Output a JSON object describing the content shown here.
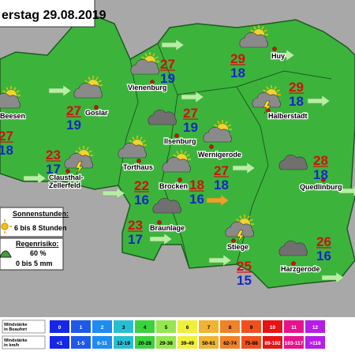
{
  "header": {
    "title": "erstag 29.08.2019"
  },
  "cities": [
    {
      "name": [
        "Beesen"
      ],
      "max": 27,
      "min": 18
    },
    {
      "name": [
        "Goslar"
      ],
      "max": 27,
      "min": 19
    },
    {
      "name": [
        "Vienenburg"
      ],
      "max": 27,
      "min": 19
    },
    {
      "name": [
        "Huy"
      ],
      "max": 29,
      "min": 18
    },
    {
      "name": [
        "Halberstadt"
      ],
      "max": 29,
      "min": 18
    },
    {
      "name": [
        "Ilsenburg"
      ],
      "max": 27,
      "min": 19
    },
    {
      "name": [
        "Wernigerode"
      ],
      "max": 27,
      "min": 18
    },
    {
      "name": [
        "Clausthal-",
        "Zellerfeld"
      ],
      "max": 23,
      "min": 17
    },
    {
      "name": [
        "Torthaus"
      ],
      "max": 22,
      "min": 16
    },
    {
      "name": [
        "Brocken"
      ],
      "max": 18,
      "min": 16
    },
    {
      "name": [
        "Quedlinburg"
      ],
      "max": 28,
      "min": 18
    },
    {
      "name": [
        "Braunlage"
      ],
      "max": 23,
      "min": 17
    },
    {
      "name": [
        "Stiege"
      ],
      "max": 25,
      "min": 15
    },
    {
      "name": [
        "Harzgerode"
      ],
      "max": 26,
      "min": 16
    }
  ],
  "legend": {
    "sun_title": "Sonnenstunden:",
    "sun_value": "6 bis 8 Stunden",
    "rain_title": "Regenrisiko:",
    "rain_percent": "60 %",
    "rain_amount": "0 bis 5 mm"
  },
  "wind_scale": {
    "beaufort_label": [
      "Windstärke",
      "in Beaufort"
    ],
    "kmh_label": [
      "Windstärke",
      "in km/h"
    ],
    "beaufort": [
      0,
      1,
      2,
      3,
      4,
      5,
      6,
      7,
      8,
      9,
      10,
      11,
      12
    ],
    "kmh": [
      "<1",
      "1-5",
      "6-11",
      "12-19",
      "20-28",
      "29-38",
      "39-49",
      "50-61",
      "62-74",
      "75-88",
      "89-102",
      "103-117",
      ">118"
    ],
    "colors": [
      "#1428e6",
      "#1e5ae6",
      "#1e8cf0",
      "#28bed2",
      "#3cd23c",
      "#96e650",
      "#f0f03c",
      "#f0b432",
      "#f08228",
      "#f0501e",
      "#e61414",
      "#e6148c",
      "#b41ee6"
    ]
  }
}
